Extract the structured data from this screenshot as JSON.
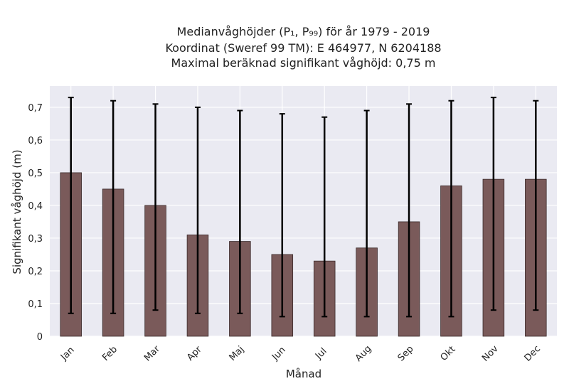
{
  "chart_data": {
    "type": "bar",
    "title_lines": [
      "Medianvåghöjder (P₁, P₉₉) för år 1979 - 2019",
      "Koordinat (Sweref 99 TM): E 464977, N 6204188",
      "Maximal beräknad signifikant våghöjd: 0,75 m"
    ],
    "xlabel": "Månad",
    "ylabel": "Signifikant våghöjd (m)",
    "categories": [
      "Jan",
      "Feb",
      "Mar",
      "Apr",
      "Maj",
      "Jun",
      "Jul",
      "Aug",
      "Sep",
      "Okt",
      "Nov",
      "Dec"
    ],
    "values": [
      0.5,
      0.45,
      0.4,
      0.31,
      0.29,
      0.25,
      0.23,
      0.27,
      0.35,
      0.46,
      0.48,
      0.48
    ],
    "error_low": [
      0.07,
      0.07,
      0.08,
      0.07,
      0.07,
      0.06,
      0.06,
      0.06,
      0.06,
      0.06,
      0.08,
      0.08
    ],
    "error_high": [
      0.73,
      0.72,
      0.71,
      0.7,
      0.69,
      0.68,
      0.67,
      0.69,
      0.71,
      0.72,
      0.73,
      0.72
    ],
    "yticks": [
      0,
      0.1,
      0.2,
      0.3,
      0.4,
      0.5,
      0.6,
      0.7
    ],
    "ytick_labels": [
      "0",
      "0,1",
      "0,2",
      "0,3",
      "0,4",
      "0,5",
      "0,6",
      "0,7"
    ],
    "ylim": [
      0,
      0.765
    ],
    "grid": true,
    "bar_color": "#7a5a5a",
    "background_color": "#eaeaf2",
    "error_color": "#000000"
  }
}
